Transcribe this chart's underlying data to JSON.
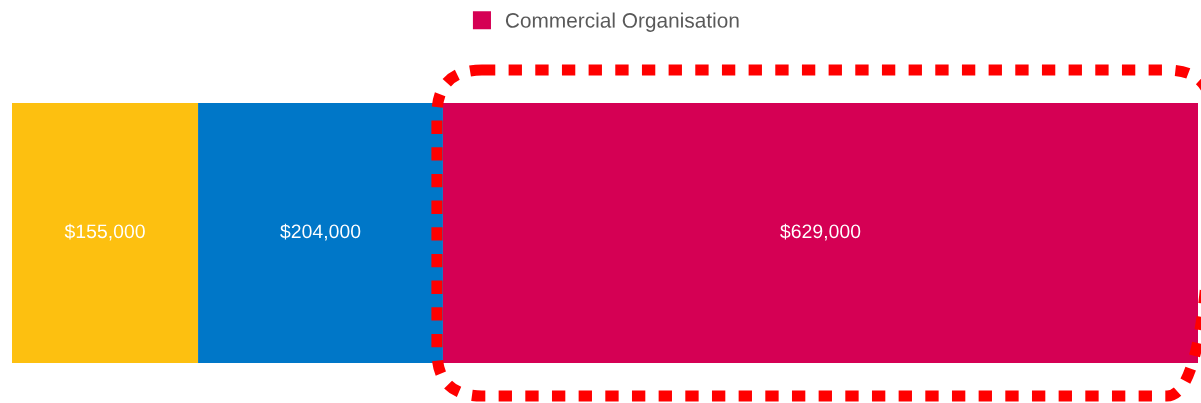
{
  "chart_data": {
    "type": "bar",
    "orientation": "horizontal",
    "stacked": true,
    "categories": [
      null
    ],
    "series": [
      {
        "color": "#fdc010",
        "values": [
          155000
        ],
        "value_labels": [
          "$155,000"
        ]
      },
      {
        "color": "#0077c8",
        "values": [
          204000
        ],
        "value_labels": [
          "$204,000"
        ]
      },
      {
        "name": "Commercial Organisation",
        "color": "#d50054",
        "values": [
          629000
        ],
        "value_labels": [
          "$629,000"
        ]
      }
    ],
    "legend": "top",
    "tick_labels": false
  }
}
